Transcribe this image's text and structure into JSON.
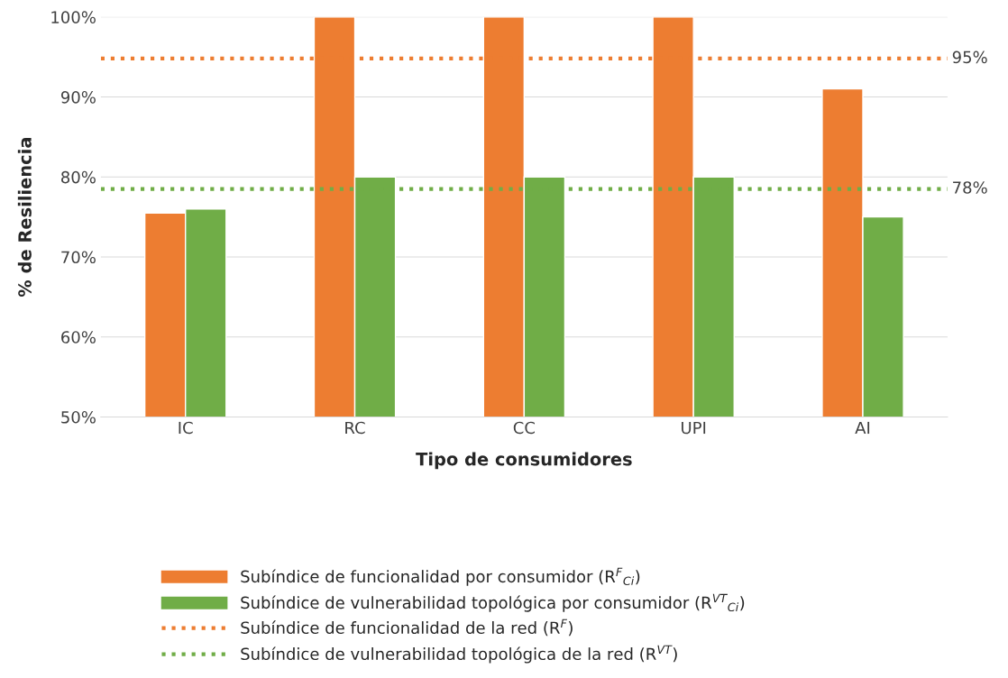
{
  "chart_data": {
    "type": "bar",
    "xlabel": "Tipo de consumidores",
    "ylabel": "% de Resiliencia",
    "categories": [
      "IC",
      "RC",
      "CC",
      "UPI",
      "AI"
    ],
    "series": [
      {
        "name": "Subíndice de funcionalidad por consumidor (R$^{F}$$_{Ci}$)",
        "color": "#ed7d31",
        "values": [
          75.5,
          100,
          100,
          100,
          91
        ]
      },
      {
        "name": "Subíndice de vulnerabilidad topológica por consumidor (R$^{VT}$$_{Ci}$)",
        "color": "#70ad47",
        "values": [
          76,
          80,
          80,
          80,
          75
        ]
      }
    ],
    "ref_lines": [
      {
        "axis": "y",
        "value": 94.8,
        "label": "Subíndice de funcionalidad de la red (R$^{F}$)",
        "color": "#ed7d31",
        "line_style": "dotted"
      },
      {
        "axis": "y",
        "value": 78.5,
        "label": "Subíndice de vulnerabilidad topológica de la red (R$^{VT}$)",
        "color": "#70ad47",
        "line_style": "dotted"
      }
    ],
    "annotations": [
      "95%",
      "78%"
    ],
    "ylim": [
      50,
      100
    ],
    "yticks": [
      {
        "value": 50,
        "label": "50%"
      },
      {
        "value": 60,
        "label": "60%"
      },
      {
        "value": 70,
        "label": "70%"
      },
      {
        "value": 80,
        "label": "80%"
      },
      {
        "value": 90,
        "label": "90%"
      },
      {
        "value": 100,
        "label": "100%"
      }
    ],
    "grid": "y",
    "legend": "bottom"
  }
}
